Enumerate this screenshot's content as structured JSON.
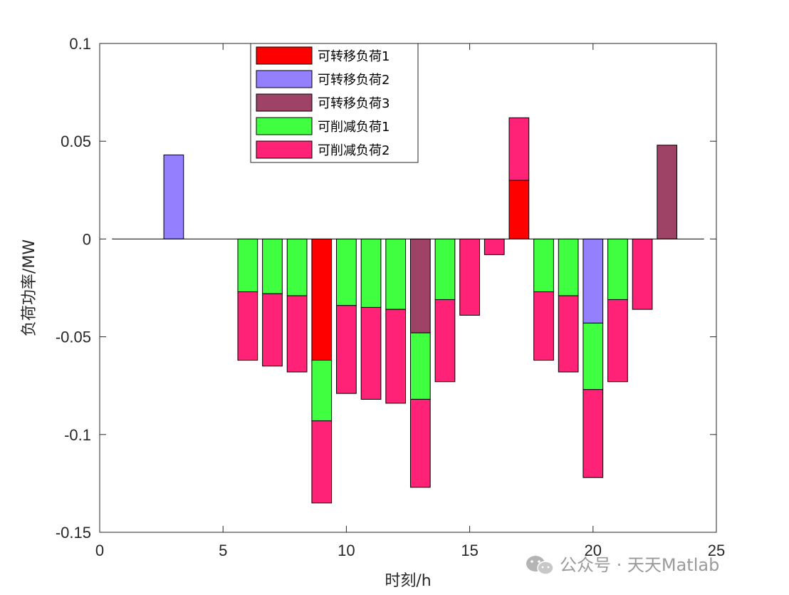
{
  "chart_data": {
    "type": "bar",
    "stacked": true,
    "xlabel": "时刻/h",
    "ylabel": "负荷功率/MW",
    "xlim": [
      0,
      25
    ],
    "ylim": [
      -0.15,
      0.1
    ],
    "xticks": [
      0,
      5,
      10,
      15,
      20,
      25
    ],
    "yticks": [
      0.1,
      0.05,
      0,
      -0.05,
      -0.1,
      -0.15
    ],
    "ytick_labels": [
      "0.1",
      "0.05",
      "0",
      "-0.05",
      "-0.1",
      "-0.15"
    ],
    "grid": false,
    "legend_placement": "top-left",
    "categories": [
      1,
      2,
      3,
      4,
      5,
      6,
      7,
      8,
      9,
      10,
      11,
      12,
      13,
      14,
      15,
      16,
      17,
      18,
      19,
      20,
      21,
      22,
      23,
      24
    ],
    "series": [
      {
        "name": "可转移负荷1",
        "color": "#ff0000",
        "values": [
          0,
          0,
          0,
          0,
          0,
          0,
          0,
          0,
          -0.062,
          0,
          0,
          0,
          0,
          0,
          0,
          0,
          0.03,
          0,
          0,
          0,
          0,
          0,
          0,
          0
        ]
      },
      {
        "name": "可转移负荷2",
        "color": "#9480ff",
        "values": [
          0,
          0,
          0.043,
          0,
          0,
          0,
          0,
          0,
          0,
          0,
          0,
          0,
          0,
          0,
          0,
          0,
          0,
          0,
          0,
          -0.043,
          0,
          0,
          0,
          0
        ]
      },
      {
        "name": "可转移负荷3",
        "color": "#9e4266",
        "values": [
          0,
          0,
          0,
          0,
          0,
          0,
          0,
          0,
          0,
          0,
          0,
          0,
          -0.048,
          0,
          0,
          0,
          0,
          0,
          0,
          0,
          0,
          0,
          0.048,
          0
        ]
      },
      {
        "name": "可削减负荷1",
        "color": "#40ff40",
        "values": [
          0,
          0,
          0,
          0,
          0,
          -0.027,
          -0.028,
          -0.029,
          -0.031,
          -0.034,
          -0.035,
          -0.036,
          -0.034,
          -0.031,
          0,
          0,
          0,
          -0.027,
          -0.029,
          -0.034,
          -0.031,
          0,
          0,
          0
        ]
      },
      {
        "name": "可削减负荷2",
        "color": "#ff2277",
        "values": [
          0,
          0,
          0,
          0,
          0,
          -0.035,
          -0.037,
          -0.039,
          -0.042,
          -0.045,
          -0.047,
          -0.048,
          -0.045,
          -0.042,
          -0.039,
          -0.008,
          0.032,
          -0.035,
          -0.039,
          -0.045,
          -0.042,
          -0.036,
          0,
          0
        ]
      }
    ]
  },
  "watermark": {
    "text": "公众号 · 天天Matlab"
  }
}
